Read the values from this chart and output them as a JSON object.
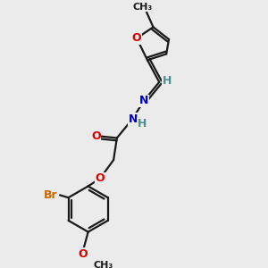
{
  "bg_color": "#ebebeb",
  "bond_color": "#1a1a1a",
  "atom_colors": {
    "O": "#dd0000",
    "N": "#0000cc",
    "Br": "#cc6600",
    "C": "#1a1a1a",
    "H": "#4a9090"
  },
  "bond_lw": 1.6,
  "double_sep": 3.0
}
